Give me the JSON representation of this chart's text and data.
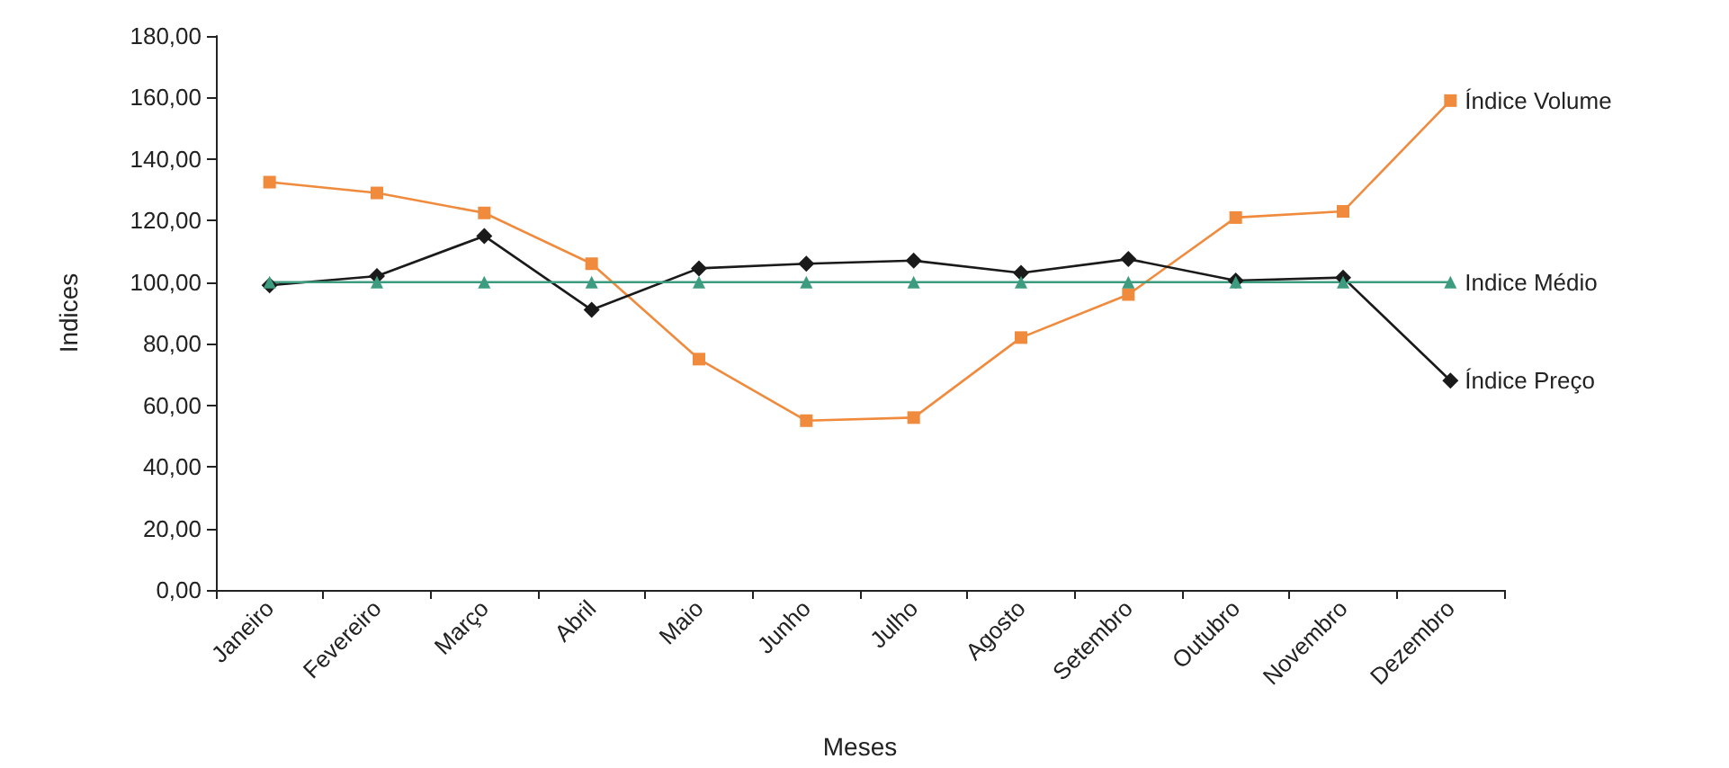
{
  "chart_data": {
    "type": "line",
    "xlabel": "Meses",
    "ylabel": "Indices",
    "categories": [
      "Janeiro",
      "Fevereiro",
      "Março",
      "Abril",
      "Maio",
      "Junho",
      "Julho",
      "Agosto",
      "Setembro",
      "Outubro",
      "Novembro",
      "Dezembro"
    ],
    "series": [
      {
        "name": "Índice Volume",
        "color": "#f08a3c",
        "marker": "square",
        "values": [
          132.5,
          129,
          122.5,
          106,
          75,
          55,
          56,
          82,
          96,
          121,
          123,
          159
        ]
      },
      {
        "name": "Índice Preço",
        "color": "#1a1a1a",
        "marker": "diamond",
        "values": [
          99,
          102,
          115,
          91,
          104.5,
          106,
          107,
          103,
          107.5,
          100.5,
          101.5,
          68
        ]
      },
      {
        "name": "Indice Médio",
        "color": "#3d9c80",
        "marker": "triangle",
        "values": [
          100,
          100,
          100,
          100,
          100,
          100,
          100,
          100,
          100,
          100,
          100,
          100
        ]
      }
    ],
    "ylim": [
      0,
      180
    ],
    "yticks": [
      {
        "value": 0,
        "label": "0,00"
      },
      {
        "value": 20,
        "label": "20,00"
      },
      {
        "value": 40,
        "label": "40,00"
      },
      {
        "value": 60,
        "label": "60,00"
      },
      {
        "value": 80,
        "label": "80,00"
      },
      {
        "value": 100,
        "label": "100,00"
      },
      {
        "value": 120,
        "label": "120,00"
      },
      {
        "value": 140,
        "label": "140,00"
      },
      {
        "value": 160,
        "label": "160,00"
      },
      {
        "value": 180,
        "label": "180,00"
      }
    ],
    "grid": false,
    "legend": false,
    "line_style": "solid"
  }
}
